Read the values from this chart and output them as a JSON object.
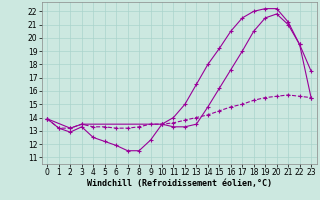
{
  "xlabel": "Windchill (Refroidissement éolien,°C)",
  "bg_color": "#cce8e0",
  "line_color": "#990099",
  "xlim": [
    -0.5,
    23.5
  ],
  "ylim": [
    10.5,
    22.7
  ],
  "xticks": [
    0,
    1,
    2,
    3,
    4,
    5,
    6,
    7,
    8,
    9,
    10,
    11,
    12,
    13,
    14,
    15,
    16,
    17,
    18,
    19,
    20,
    21,
    22,
    23
  ],
  "yticks": [
    11,
    12,
    13,
    14,
    15,
    16,
    17,
    18,
    19,
    20,
    21,
    22
  ],
  "curve1_x": [
    0,
    1,
    2,
    3,
    4,
    5,
    6,
    7,
    8,
    9,
    10,
    11,
    12,
    13,
    14,
    15,
    16,
    17,
    18,
    19,
    20,
    21,
    22,
    23
  ],
  "curve1_y": [
    13.9,
    13.2,
    12.9,
    13.3,
    12.5,
    12.2,
    11.9,
    11.5,
    11.5,
    12.3,
    13.5,
    13.3,
    13.3,
    13.5,
    14.8,
    16.2,
    17.6,
    19.0,
    20.5,
    21.5,
    21.8,
    21.0,
    19.5,
    17.5
  ],
  "curve2_x": [
    0,
    1,
    2,
    3,
    4,
    5,
    6,
    7,
    8,
    9,
    10,
    11,
    12,
    13,
    14,
    15,
    16,
    17,
    18,
    19,
    20,
    21,
    22,
    23
  ],
  "curve2_y": [
    13.9,
    13.2,
    13.2,
    13.5,
    13.3,
    13.3,
    13.2,
    13.2,
    13.3,
    13.5,
    13.5,
    13.6,
    13.8,
    14.0,
    14.2,
    14.5,
    14.8,
    15.0,
    15.3,
    15.5,
    15.6,
    15.7,
    15.6,
    15.5
  ],
  "curve3_x": [
    0,
    2,
    3,
    10,
    11,
    12,
    13,
    14,
    15,
    16,
    17,
    18,
    19,
    20,
    21,
    22,
    23
  ],
  "curve3_y": [
    13.9,
    13.2,
    13.5,
    13.5,
    14.0,
    15.0,
    16.5,
    18.0,
    19.2,
    20.5,
    21.5,
    22.0,
    22.2,
    22.2,
    21.2,
    19.5,
    15.5
  ],
  "grid_color": "#aad4cc",
  "font_size_label": 6,
  "font_size_tick": 5.5
}
